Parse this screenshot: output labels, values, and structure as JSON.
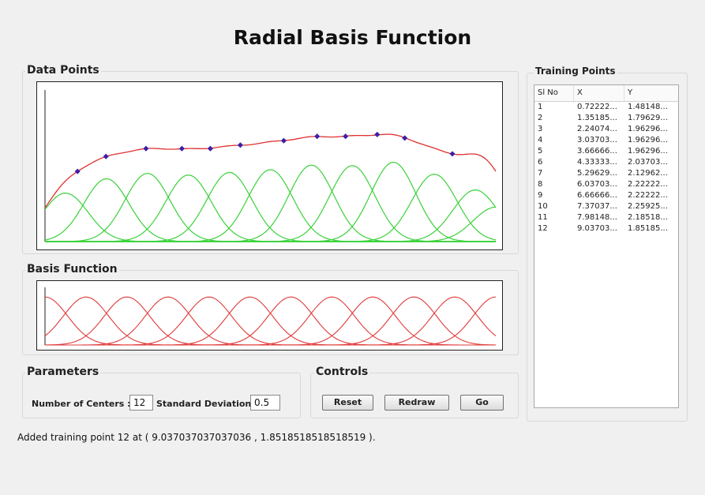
{
  "app": {
    "title": "Radial Basis Function"
  },
  "data_points_panel": {
    "title": "Data Points"
  },
  "basis_panel": {
    "title": "Basis Function"
  },
  "parameters": {
    "title": "Parameters",
    "centers_label": "Number of Centers :",
    "centers_value": "12",
    "stddev_label": "Standard Deviation :",
    "stddev_value": "0.5"
  },
  "controls": {
    "title": "Controls",
    "reset_label": "Reset",
    "redraw_label": "Redraw",
    "go_label": "Go"
  },
  "training_points": {
    "title": "Training Points",
    "columns": [
      "Sl No",
      "X",
      "Y"
    ],
    "rows": [
      [
        "1",
        "0.72222...",
        "1.48148..."
      ],
      [
        "2",
        "1.35185...",
        "1.79629..."
      ],
      [
        "3",
        "2.24074...",
        "1.96296..."
      ],
      [
        "4",
        "3.03703...",
        "1.96296..."
      ],
      [
        "5",
        "3.66666...",
        "1.96296..."
      ],
      [
        "6",
        "4.33333...",
        "2.03703..."
      ],
      [
        "7",
        "5.29629...",
        "2.12962..."
      ],
      [
        "8",
        "6.03703...",
        "2.22222..."
      ],
      [
        "9",
        "6.66666...",
        "2.22222..."
      ],
      [
        "10",
        "7.37037...",
        "2.25925..."
      ],
      [
        "11",
        "7.98148...",
        "2.18518..."
      ],
      [
        "12",
        "9.03703...",
        "1.85185..."
      ]
    ]
  },
  "status": {
    "text": "Added training point 12 at ( 9.037037037037036 , 1.8518518518518519 )."
  },
  "colors": {
    "fit_curve": "#e03030",
    "point": "#3a1fa8",
    "rbf_green": "#3ad13a",
    "basis_red": "#e03a3a"
  },
  "chart_data": [
    {
      "type": "scatter",
      "title": "Data Points",
      "x": [
        0.7222,
        1.3519,
        2.2407,
        3.037,
        3.6667,
        4.3333,
        5.2963,
        6.037,
        6.6667,
        7.3704,
        7.9815,
        9.037
      ],
      "y": [
        1.4815,
        1.7963,
        1.963,
        1.963,
        1.963,
        2.037,
        2.1296,
        2.2222,
        2.2222,
        2.2593,
        2.1852,
        1.8519
      ],
      "xlim": [
        0,
        10
      ],
      "ylim": [
        0,
        3.2
      ],
      "centers": [
        0.4545,
        1.3636,
        2.2727,
        3.1818,
        4.0909,
        5.0,
        5.9091,
        6.8182,
        7.7273,
        8.6364,
        9.5455,
        10.0
      ],
      "sigma": 0.5
    },
    {
      "type": "line",
      "title": "Basis Function",
      "centers": [
        0.0,
        0.9091,
        1.8182,
        2.7273,
        3.6364,
        4.5455,
        5.4545,
        6.3636,
        7.2727,
        8.1818,
        9.0909,
        10.0
      ],
      "sigma": 0.5,
      "xlim": [
        0,
        10
      ],
      "ylim": [
        0,
        1.2
      ]
    }
  ]
}
